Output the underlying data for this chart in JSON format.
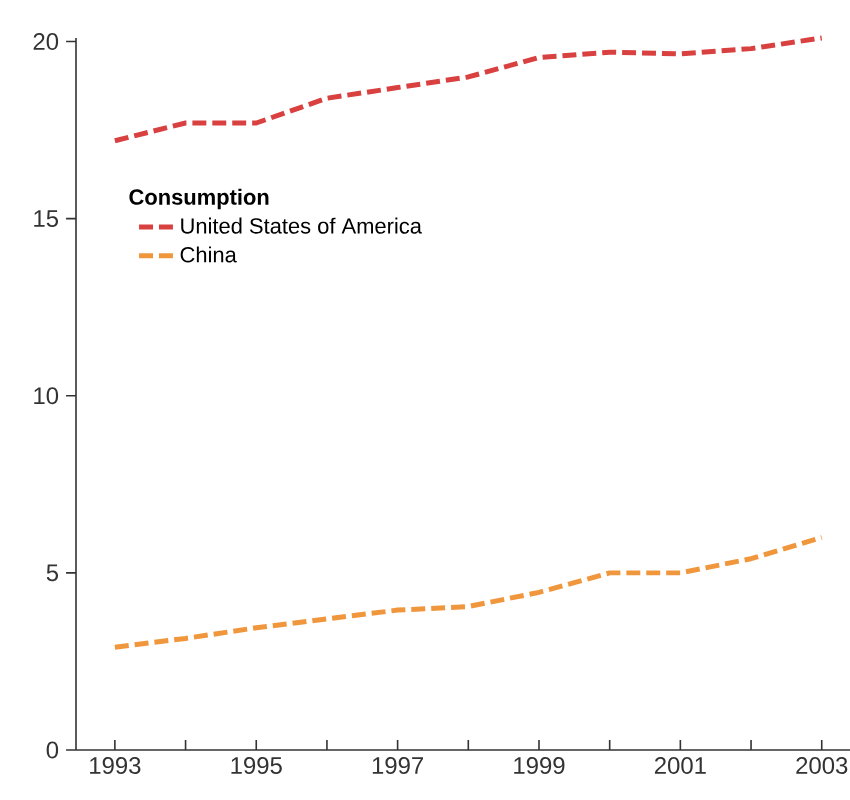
{
  "chart_data": {
    "type": "line",
    "legend_title": "Consumption",
    "x": [
      1993,
      1994,
      1995,
      1996,
      1997,
      1998,
      1999,
      2000,
      2001,
      2002,
      2003
    ],
    "series": [
      {
        "name": "United States of America",
        "color": "#d94040",
        "values": [
          17.2,
          17.7,
          17.7,
          18.4,
          18.7,
          19.0,
          19.55,
          19.7,
          19.65,
          19.8,
          20.1
        ]
      },
      {
        "name": "China",
        "color": "#f0963c",
        "values": [
          2.9,
          3.15,
          3.45,
          3.7,
          3.95,
          4.05,
          4.45,
          5.0,
          5.0,
          5.4,
          6.0
        ]
      }
    ],
    "xlim": [
      1992.45,
      2003.4
    ],
    "ylim": [
      0,
      20.1
    ],
    "xticks": [
      1993,
      {
        "value": 1994,
        "label": null
      },
      1995,
      {
        "value": 1996,
        "label": null
      },
      1997,
      {
        "value": 1998,
        "label": null
      },
      1999,
      {
        "value": 2000,
        "label": null
      },
      2001,
      {
        "value": 2002,
        "label": null
      },
      2003
    ],
    "yticks": [
      0,
      5,
      10,
      15,
      20
    ],
    "grid": false,
    "legend": "top left",
    "marker": "none",
    "line_style": "dashed"
  }
}
